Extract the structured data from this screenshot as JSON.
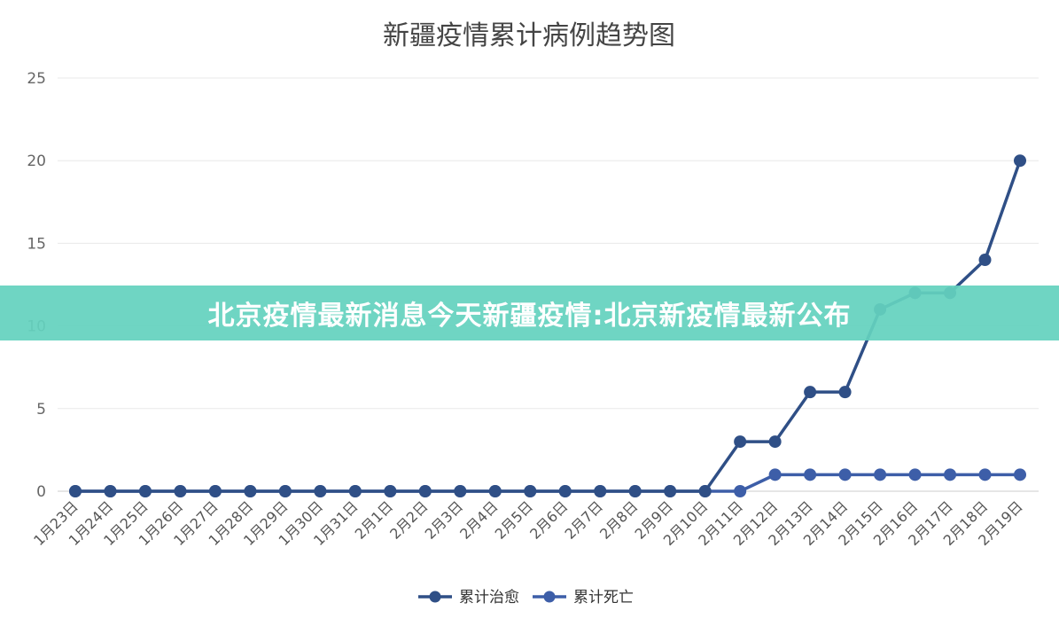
{
  "banner": {
    "text": "北京疫情最新消息今天新疆疫情:北京新疫情最新公布",
    "color": "#64d2be"
  },
  "chart_data": {
    "type": "line",
    "title": "新疆疫情累计病例趋势图",
    "xlabel": "",
    "ylabel": "",
    "ylim": [
      0,
      25
    ],
    "yticks": [
      0,
      5,
      10,
      15,
      20,
      25
    ],
    "grid": true,
    "legend_position": "bottom",
    "categories": [
      "1月23日",
      "1月24日",
      "1月25日",
      "1月26日",
      "1月27日",
      "1月28日",
      "1月29日",
      "1月30日",
      "1月31日",
      "2月1日",
      "2月2日",
      "2月3日",
      "2月4日",
      "2月5日",
      "2月6日",
      "2月7日",
      "2月8日",
      "2月9日",
      "2月10日",
      "2月11日",
      "2月12日",
      "2月13日",
      "2月14日",
      "2月15日",
      "2月16日",
      "2月17日",
      "2月18日",
      "2月19日"
    ],
    "series": [
      {
        "name": "累计治愈",
        "color": "#2f4f86",
        "values": [
          0,
          0,
          0,
          0,
          0,
          0,
          0,
          0,
          0,
          0,
          0,
          0,
          0,
          0,
          0,
          0,
          0,
          0,
          0,
          3,
          3,
          6,
          6,
          11,
          12,
          12,
          14,
          20
        ]
      },
      {
        "name": "累计死亡",
        "color": "#3d5ea8",
        "values": [
          0,
          0,
          0,
          0,
          0,
          0,
          0,
          0,
          0,
          0,
          0,
          0,
          0,
          0,
          0,
          0,
          0,
          0,
          0,
          0,
          1,
          1,
          1,
          1,
          1,
          1,
          1,
          1
        ]
      }
    ]
  }
}
